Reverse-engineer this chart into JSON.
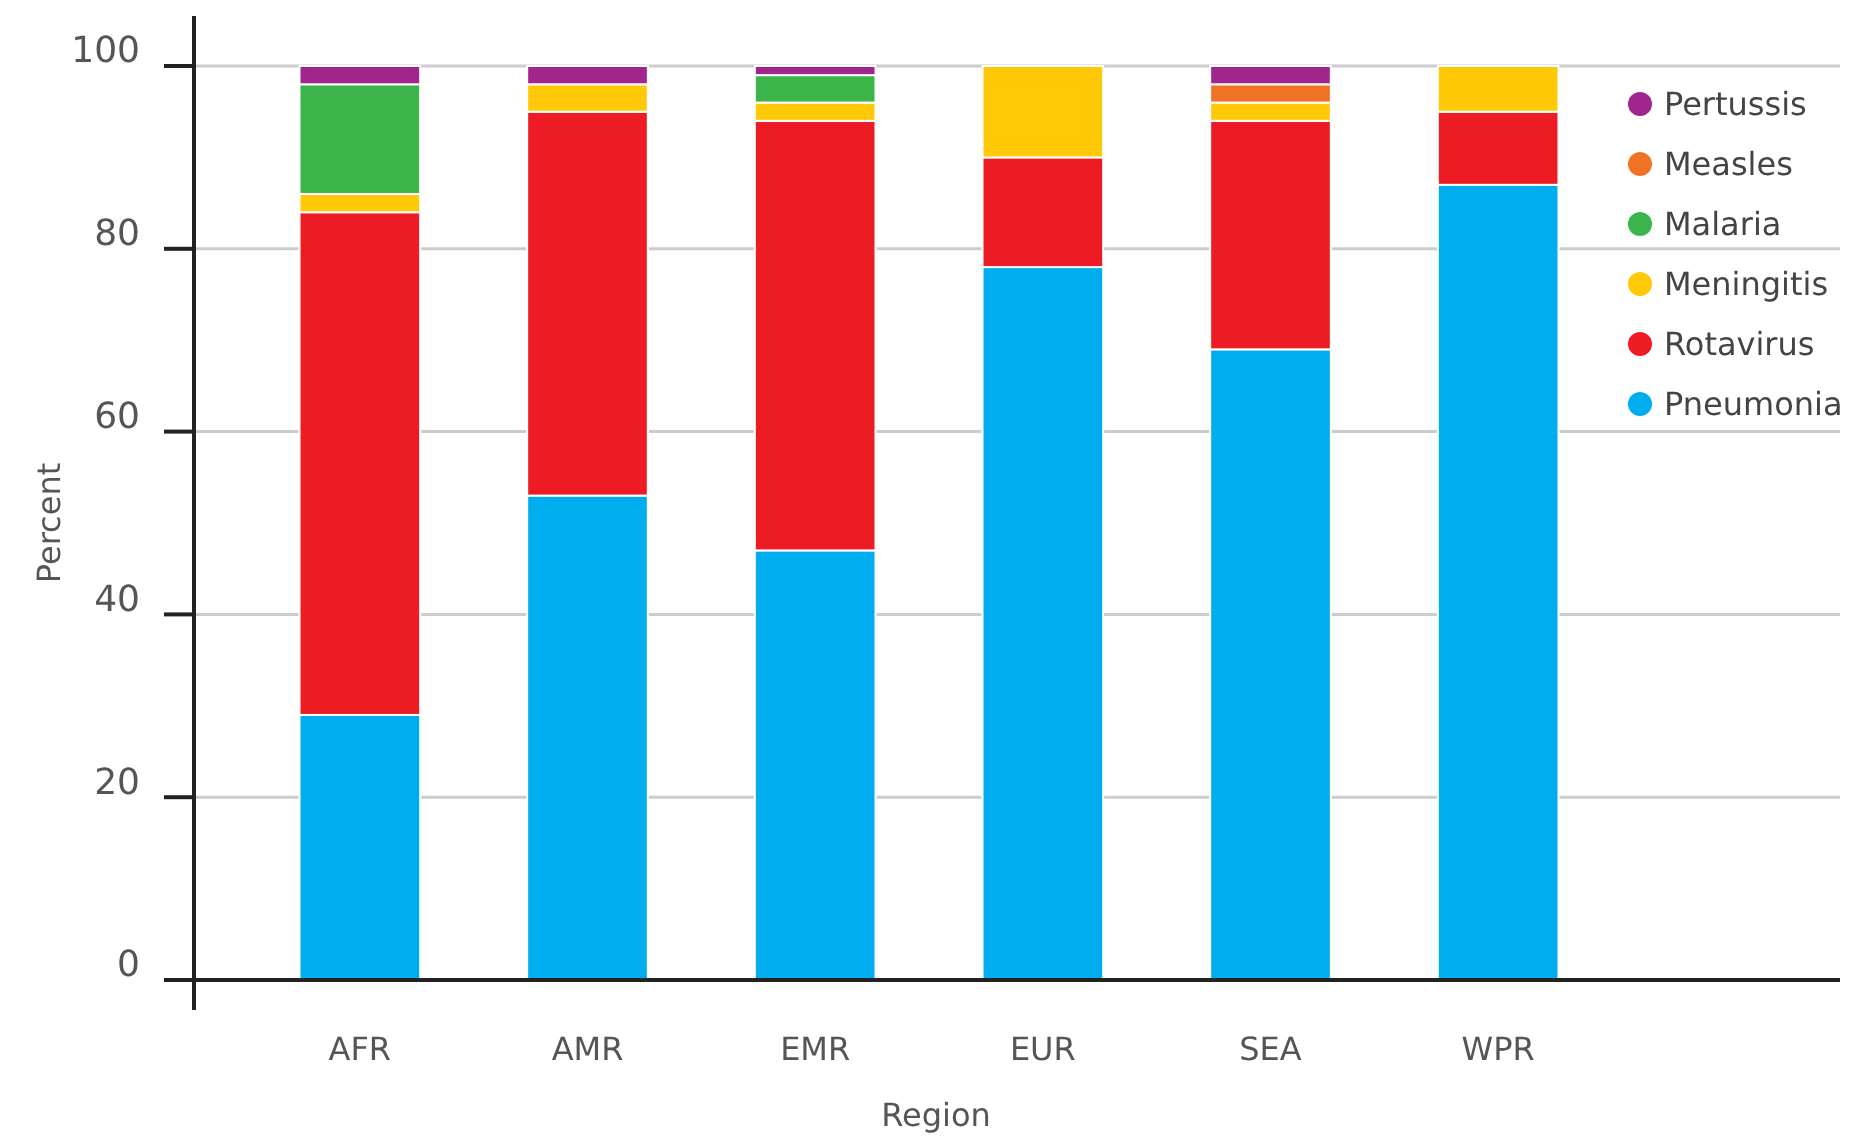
{
  "chart_data": {
    "type": "bar",
    "stacked": true,
    "xlabel": "Region",
    "ylabel": "Percent",
    "categories": [
      "AFR",
      "AMR",
      "EMR",
      "EUR",
      "SEA",
      "WPR"
    ],
    "series": [
      {
        "name": "Pneumonia",
        "color": "#00aeef",
        "values": [
          29,
          53,
          47,
          78,
          69,
          87
        ]
      },
      {
        "name": "Rotavirus",
        "color": "#ed1c24",
        "values": [
          55,
          42,
          47,
          12,
          25,
          8
        ]
      },
      {
        "name": "Meningitis",
        "color": "#ffc907",
        "values": [
          2,
          3,
          2,
          10,
          2,
          5
        ]
      },
      {
        "name": "Malaria",
        "color": "#3bb54a",
        "values": [
          12,
          0,
          3,
          0,
          0,
          0
        ]
      },
      {
        "name": "Measles",
        "color": "#f07224",
        "values": [
          0,
          0,
          0,
          0,
          2,
          0
        ]
      },
      {
        "name": "Pertussis",
        "color": "#a0268e",
        "values": [
          2,
          2,
          1,
          0,
          2,
          0
        ]
      }
    ],
    "ylim": [
      0,
      100
    ],
    "yticks": [
      0,
      20,
      40,
      60,
      80,
      100
    ],
    "grid": "y",
    "legend": "top right"
  }
}
